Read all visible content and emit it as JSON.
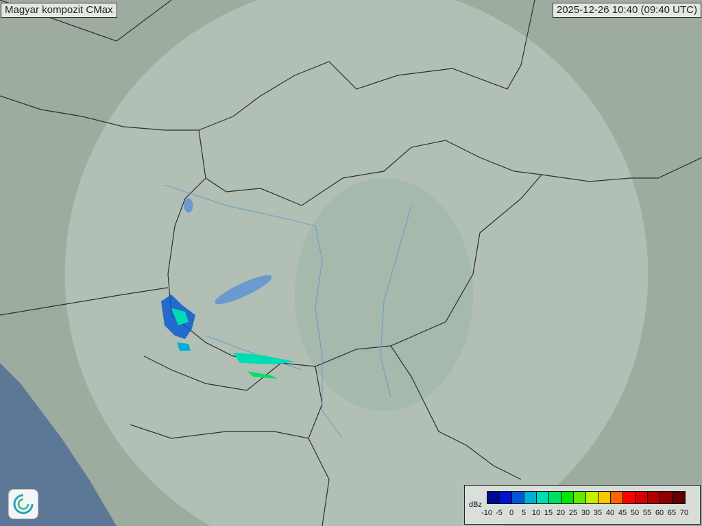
{
  "header": {
    "title": "Magyar kompozit  CMax",
    "timestamp": "2025-12-26 10:40 (09:40 UTC)"
  },
  "logo": {
    "icon": "swirl-logo-icon"
  },
  "legend": {
    "unit": "dBz",
    "ticks": [
      "-10",
      "-5",
      "0",
      "5",
      "10",
      "15",
      "20",
      "25",
      "30",
      "35",
      "40",
      "45",
      "50",
      "55",
      "60",
      "65",
      "70"
    ],
    "colors": [
      "#00088f",
      "#0012d0",
      "#0058d2",
      "#00b0d8",
      "#00dcb4",
      "#00e060",
      "#00e800",
      "#60ee00",
      "#c4f000",
      "#f8c800",
      "#ff6400",
      "#ff0000",
      "#d80000",
      "#b00000",
      "#880000",
      "#600000"
    ]
  },
  "map": {
    "terrain_color": "#9aa99c",
    "coverage_color": "#c8d8d0",
    "border_color": "#333333",
    "water_color": "#6a9ad0",
    "sea_color": "#5a7a9a"
  }
}
